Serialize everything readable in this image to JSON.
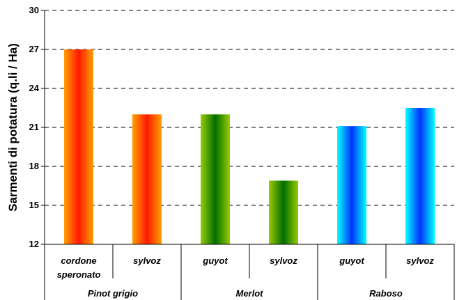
{
  "chart_data": {
    "type": "bar",
    "title": "",
    "ylabel": "Sarmenti di potatura (q.li / Ha)",
    "xlabel": "",
    "ylim": [
      12,
      30
    ],
    "yticks": [
      12,
      15,
      18,
      21,
      24,
      27,
      30
    ],
    "grid": "horizontal dashed",
    "groups": [
      {
        "name": "Pinot grigio",
        "bars": [
          {
            "label": "cordone\nsperonato",
            "value": 27.0
          },
          {
            "label": "sylvoz",
            "value": 22.0
          }
        ]
      },
      {
        "name": "Merlot",
        "bars": [
          {
            "label": "guyot",
            "value": 22.0
          },
          {
            "label": "sylvoz",
            "value": 16.9
          }
        ]
      },
      {
        "name": "Raboso",
        "bars": [
          {
            "label": "guyot",
            "value": 21.1
          },
          {
            "label": "sylvoz",
            "value": 22.5
          }
        ]
      }
    ],
    "colors": {
      "pinot_center": "#ff1a00",
      "pinot_edge": "#ffa000",
      "merlot_center": "#006e00",
      "merlot_edge": "#99cc00",
      "raboso_center": "#0033ff",
      "raboso_edge": "#00ffff"
    }
  }
}
